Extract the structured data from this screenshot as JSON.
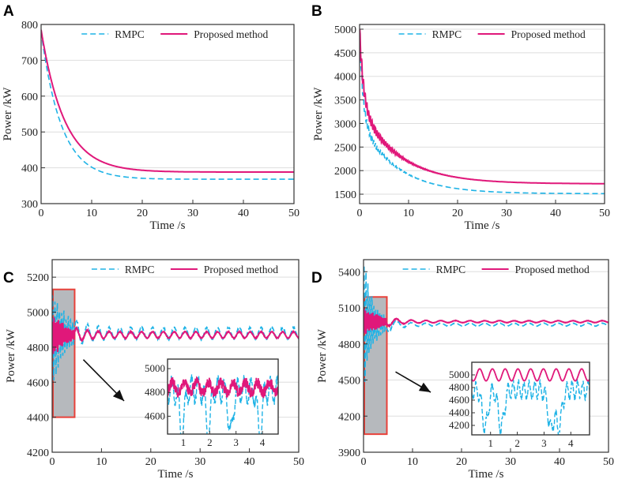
{
  "colors": {
    "rmpc": "#1fb3e6",
    "proposed": "#e0187a",
    "grid": "#dedede",
    "highlight_fill": "#b6b9bd",
    "highlight_stroke": "#e8413a"
  },
  "chart_data": [
    {
      "panel": "A",
      "type": "line",
      "title": "",
      "xlabel": "Time /s",
      "ylabel": "Power /kW",
      "xlim": [
        0,
        50
      ],
      "ylim": [
        300,
        800
      ],
      "xticks": [
        0,
        10,
        20,
        30,
        40,
        50
      ],
      "yticks": [
        300,
        400,
        500,
        600,
        700,
        800
      ],
      "grid": true,
      "legend": "top",
      "series": [
        {
          "name": "RMPC",
          "style": "dashed",
          "model": {
            "kind": "exp",
            "start": 780,
            "end": 368,
            "tau": 4.0
          }
        },
        {
          "name": "Proposed method",
          "style": "solid",
          "model": {
            "kind": "exp",
            "start": 785,
            "end": 388,
            "tau": 4.6
          }
        }
      ]
    },
    {
      "panel": "B",
      "type": "line",
      "title": "",
      "xlabel": "Time /s",
      "ylabel": "Power /kW",
      "xlim": [
        0,
        50
      ],
      "ylim": [
        1300,
        5100
      ],
      "xticks": [
        0,
        10,
        20,
        30,
        40,
        50
      ],
      "yticks": [
        1500,
        2000,
        2500,
        3000,
        3500,
        4000,
        4500,
        5000
      ],
      "grid": true,
      "legend": "top",
      "series": [
        {
          "name": "RMPC",
          "style": "dashed",
          "model": {
            "kind": "decay2",
            "start": 4950,
            "end": 1510,
            "w1": 0.55,
            "tau1": 0.7,
            "tau2": 7.5,
            "osc": 140,
            "oscTau": 4
          }
        },
        {
          "name": "Proposed method",
          "style": "solid",
          "model": {
            "kind": "decay2",
            "start": 5000,
            "end": 1720,
            "w1": 0.5,
            "tau1": 0.8,
            "tau2": 8.0,
            "osc": 170,
            "oscTau": 5
          }
        }
      ]
    },
    {
      "panel": "C",
      "type": "line",
      "title": "",
      "xlabel": "Time /s",
      "ylabel": "Power /kW",
      "xlim": [
        0,
        50
      ],
      "ylim": [
        4200,
        5300
      ],
      "xticks": [
        0,
        10,
        20,
        30,
        40,
        50
      ],
      "yticks": [
        4200,
        4400,
        4600,
        4800,
        5000,
        5200
      ],
      "grid": true,
      "legend": "top",
      "highlight": {
        "x": [
          0,
          4.4
        ],
        "y": [
          4400,
          5130
        ]
      },
      "series": [
        {
          "name": "RMPC",
          "style": "dashed",
          "model": {
            "kind": "osc",
            "base": 4880,
            "amp0": 330,
            "ampTau": 2.5,
            "ampInf": 32,
            "period": 2.2,
            "fastPeriod": 0.45,
            "until": 4.4
          }
        },
        {
          "name": "Proposed method",
          "style": "solid",
          "model": {
            "kind": "osc",
            "base": 4870,
            "amp0": 150,
            "ampTau": 2.5,
            "ampInf": 18,
            "period": 2.2,
            "fastPeriod": 0.3,
            "until": 4.4
          }
        }
      ],
      "inset": {
        "xlim": [
          0.4,
          4.6
        ],
        "ylim": [
          4450,
          5080
        ],
        "xticks": [
          1,
          2,
          3,
          4
        ],
        "yticks": [
          4600,
          4800,
          5000
        ],
        "series": [
          {
            "name": "RMPC",
            "model": {
              "kind": "dips",
              "base": 4820,
              "amp": 170,
              "dipDepth": 380,
              "dipCenters": [
                0.95,
                1.95,
                2.8,
                3.9
              ],
              "dipWidth": 0.12,
              "wobble": 0.25
            }
          },
          {
            "name": "Proposed method",
            "model": {
              "kind": "jitter",
              "base": 4840,
              "amp": 90,
              "freq": 6.5
            }
          }
        ]
      }
    },
    {
      "panel": "D",
      "type": "line",
      "title": "",
      "xlabel": "Time /s",
      "ylabel": "Power /kW",
      "xlim": [
        0,
        50
      ],
      "ylim": [
        3900,
        5500
      ],
      "xticks": [
        0,
        10,
        20,
        30,
        40,
        50
      ],
      "yticks": [
        3900,
        4200,
        4500,
        4800,
        5100,
        5400
      ],
      "grid": true,
      "legend": "top",
      "highlight": {
        "x": [
          0,
          4.6
        ],
        "y": [
          4050,
          5190
        ]
      },
      "series": [
        {
          "name": "RMPC",
          "style": "dashed",
          "model": {
            "kind": "osc",
            "base": 4960,
            "amp0": 600,
            "ampTau": 2.0,
            "ampInf": 12,
            "period": 3.0,
            "fastPeriod": 0.4,
            "until": 4.6
          }
        },
        {
          "name": "Proposed method",
          "style": "solid",
          "model": {
            "kind": "osc",
            "base": 4985,
            "amp0": 150,
            "ampTau": 3.0,
            "ampInf": 8,
            "period": 3.0,
            "fastPeriod": 0.3,
            "until": 4.6
          }
        }
      ],
      "inset": {
        "xlim": [
          0.3,
          4.7
        ],
        "ylim": [
          4050,
          5200
        ],
        "xticks": [
          1,
          2,
          3,
          4
        ],
        "yticks": [
          4200,
          4400,
          4600,
          4800,
          5000
        ],
        "series": [
          {
            "name": "RMPC",
            "model": {
              "kind": "dips",
              "base": 4760,
              "amp": 220,
              "dipDepth": 600,
              "dipCenters": [
                0.8,
                1.4,
                3.25,
                3.55
              ],
              "dipWidth": 0.15,
              "wobble": 0.2
            }
          },
          {
            "name": "Proposed method",
            "model": {
              "kind": "sine",
              "base": 5000,
              "amp": 95,
              "freq": 2.1
            }
          }
        ]
      }
    }
  ]
}
